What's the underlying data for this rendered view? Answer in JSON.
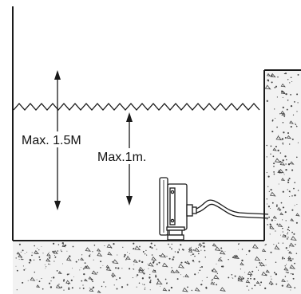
{
  "labels": {
    "max_left": "Max. 1.5M",
    "max_right": "Max.1m."
  },
  "colors": {
    "line": "#1a1a1a",
    "concrete_fill": "#f2f2f2",
    "concrete_speckle": "#444444",
    "background": "#ffffff"
  },
  "icons": [
    "double-arrow-icon",
    "underwater-light-icon",
    "cable-icon"
  ]
}
